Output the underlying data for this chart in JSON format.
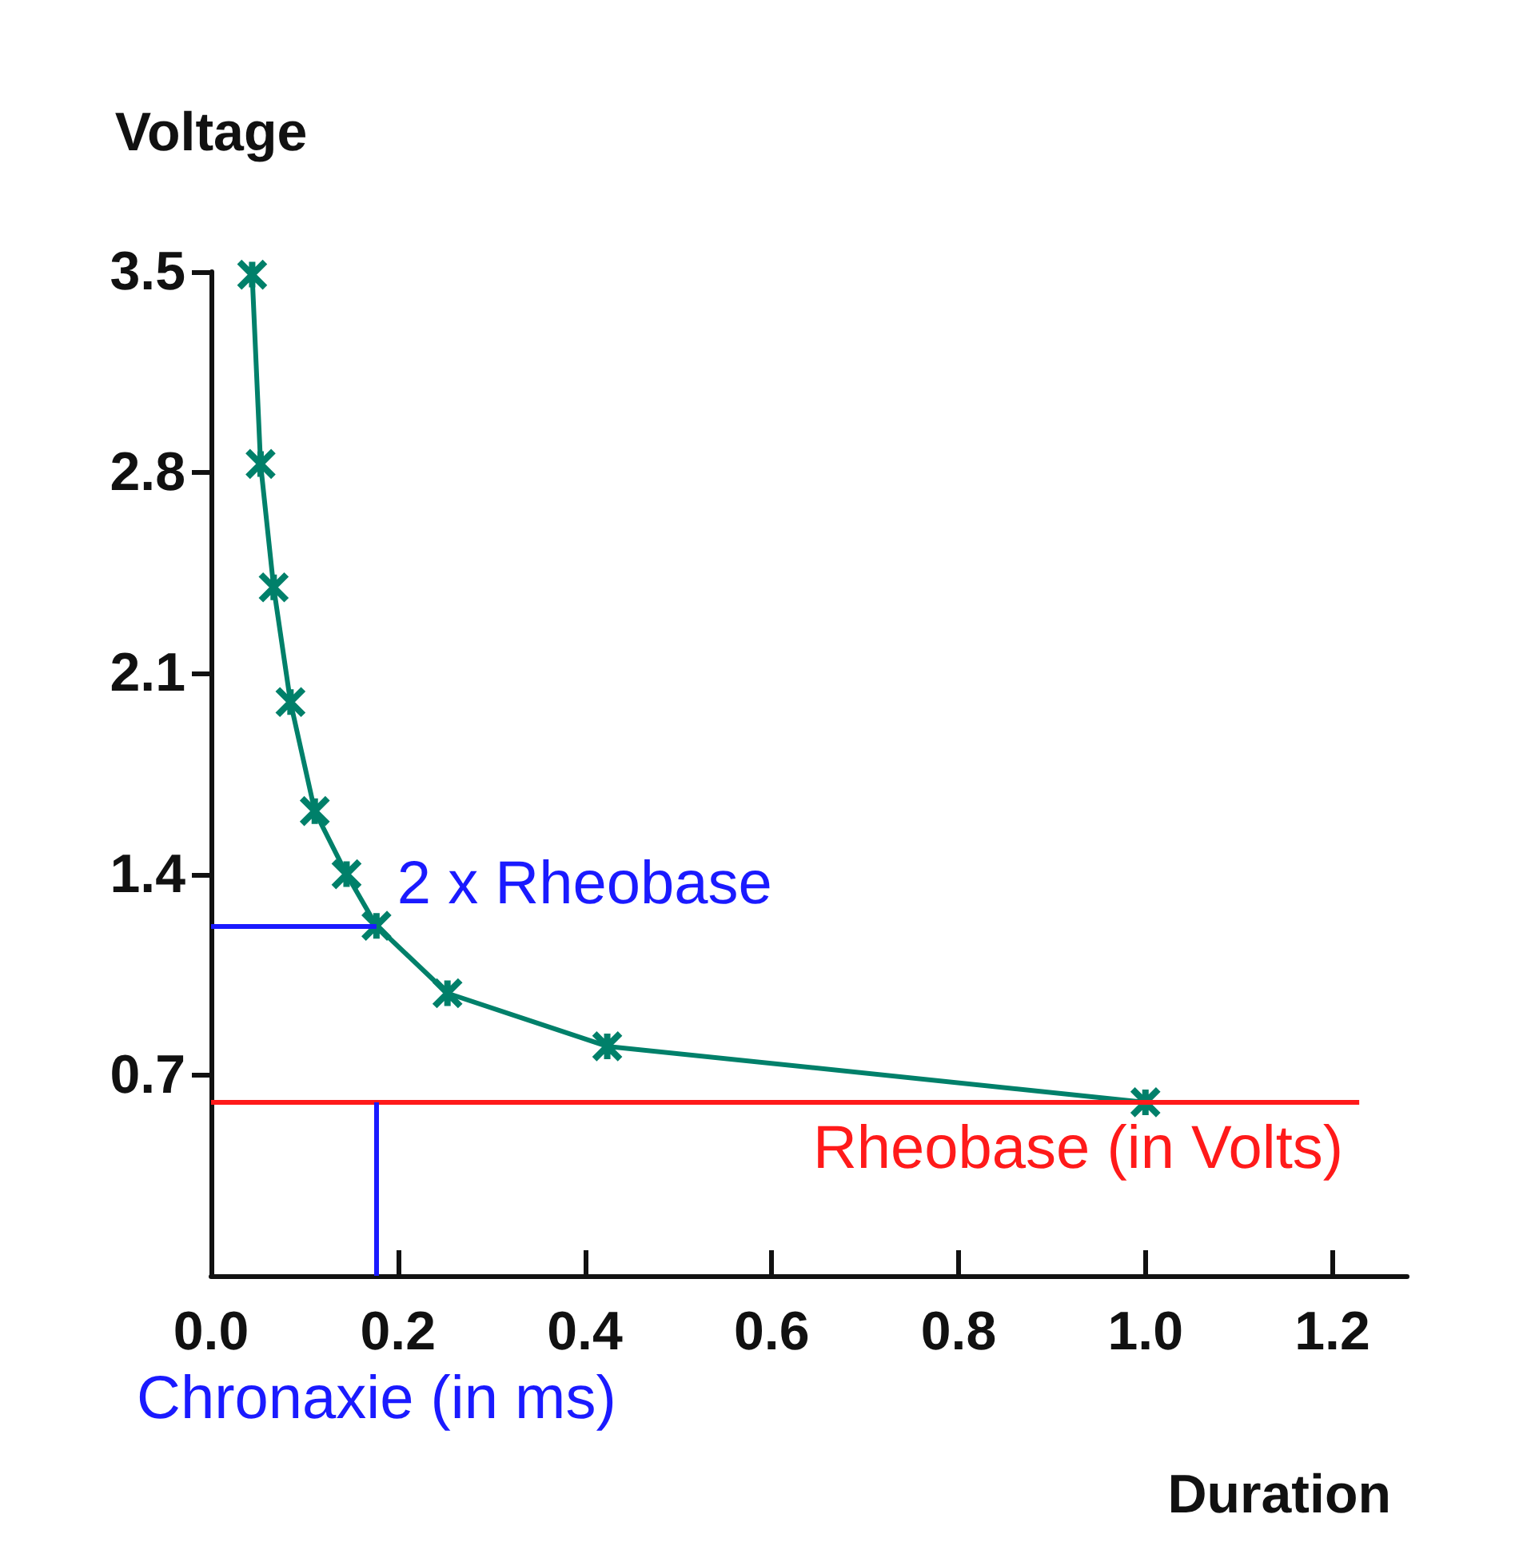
{
  "chart_data": {
    "type": "line",
    "xlabel": "Duration",
    "ylabel": "Voltage",
    "x": [
      0.044,
      0.053,
      0.067,
      0.085,
      0.111,
      0.145,
      0.177,
      0.253,
      0.424,
      1.0
    ],
    "series": [
      {
        "color": "#00806a",
        "values": [
          3.49,
          2.83,
          2.4,
          2.0,
          1.62,
          1.4,
          1.22,
          0.985,
          0.8,
          0.605
        ]
      }
    ],
    "xlim": [
      0,
      1.28
    ],
    "ylim": [
      0,
      3.5
    ],
    "xticks": [
      {
        "value": 0,
        "label": "0.0"
      },
      0.2,
      0.4,
      0.6,
      0.8,
      {
        "value": 1,
        "label": "1.0"
      },
      1.2
    ],
    "yticks": [
      0.7,
      1.4,
      2.1,
      2.8,
      3.5
    ],
    "ref_lines": [
      {
        "axis": "y",
        "value": 0.605,
        "label": "Rheobase (in Volts)",
        "color": "#ff1a1a"
      },
      {
        "axis": "y",
        "value": 1.22,
        "label": "2 x Rheobase",
        "color": "#1a1aff"
      },
      {
        "axis": "x",
        "value": 0.177,
        "label": "Chronaxie (in ms)",
        "color": "#1a1aff"
      }
    ],
    "grid": false,
    "marker": "cross",
    "line_style": "solid"
  }
}
